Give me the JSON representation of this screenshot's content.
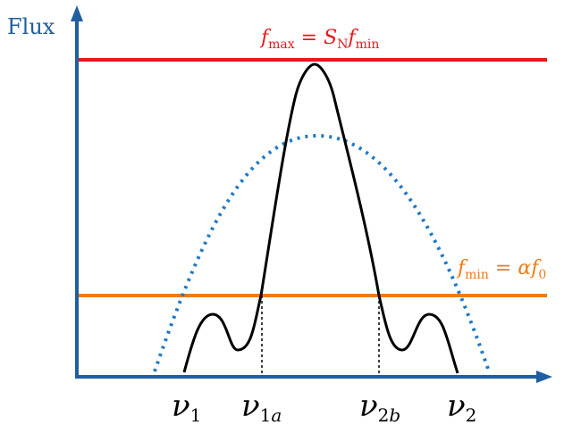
{
  "diagram": {
    "y_axis_label": "Flux",
    "fmax_label": {
      "f": "f",
      "sub": "max",
      "eq": " = S",
      "N": "N",
      "f2": "f",
      "sub2": "min"
    },
    "fmin_label": {
      "f": "f",
      "sub": "min",
      "eq": " = αf",
      "zero": "0"
    },
    "nu_labels": [
      {
        "base": "ν",
        "sub": "1"
      },
      {
        "base": "ν",
        "sub": "1",
        "sub_i": "a"
      },
      {
        "base": "ν",
        "sub": "2",
        "sub_i": "b"
      },
      {
        "base": "ν",
        "sub": "2"
      }
    ],
    "colors": {
      "axis": "#1f5ea0",
      "fmax_line": "#e41a1c",
      "fmin_line": "#f07a14",
      "dotted_curve": "#1f78c8",
      "solid_curve": "#000000"
    }
  }
}
